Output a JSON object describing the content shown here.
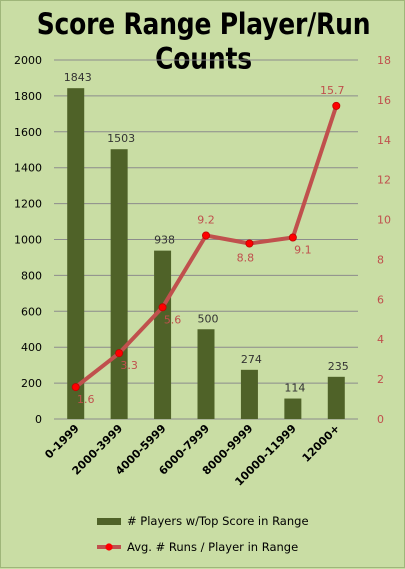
{
  "chart_data": {
    "type": "bar+line",
    "title": "Score Range Player/Run Counts",
    "categories": [
      "0-1999",
      "2000-3999",
      "4000-5999",
      "6000-7999",
      "8000-9999",
      "10000-11999",
      "12000+"
    ],
    "series": [
      {
        "name": "# Players w/Top Score in Range",
        "type": "bar",
        "axis": "left",
        "values": [
          1843,
          1503,
          938,
          500,
          274,
          114,
          235
        ],
        "labels": [
          "1843",
          "1503",
          "938",
          "500",
          "274",
          "114",
          "235"
        ],
        "color": "#4f6228"
      },
      {
        "name": "Avg. # Runs / Player in Range",
        "type": "line",
        "axis": "right",
        "values": [
          1.6,
          3.3,
          5.6,
          9.2,
          8.8,
          9.1,
          15.7
        ],
        "labels": [
          "1.6",
          "3.3",
          "5.6",
          "9.2",
          "8.8",
          "9.1",
          "15.7"
        ],
        "color": "#c0504d"
      }
    ],
    "y_left": {
      "min": 0,
      "max": 2000,
      "step": 200,
      "ticks": [
        "0",
        "200",
        "400",
        "600",
        "800",
        "1000",
        "1200",
        "1400",
        "1600",
        "1800",
        "2000"
      ]
    },
    "y_right": {
      "min": 0,
      "max": 18,
      "step": 2,
      "ticks": [
        "0",
        "2",
        "4",
        "6",
        "8",
        "10",
        "12",
        "14",
        "16",
        "18"
      ]
    },
    "grid": true,
    "legend_position": "bottom"
  },
  "colors": {
    "background": "#c9dda4",
    "bar": "#4f6228",
    "line": "#c0504d",
    "marker": "#ff0000",
    "gridline": "#8c8c8c",
    "right_axis_text": "#c0504d"
  }
}
